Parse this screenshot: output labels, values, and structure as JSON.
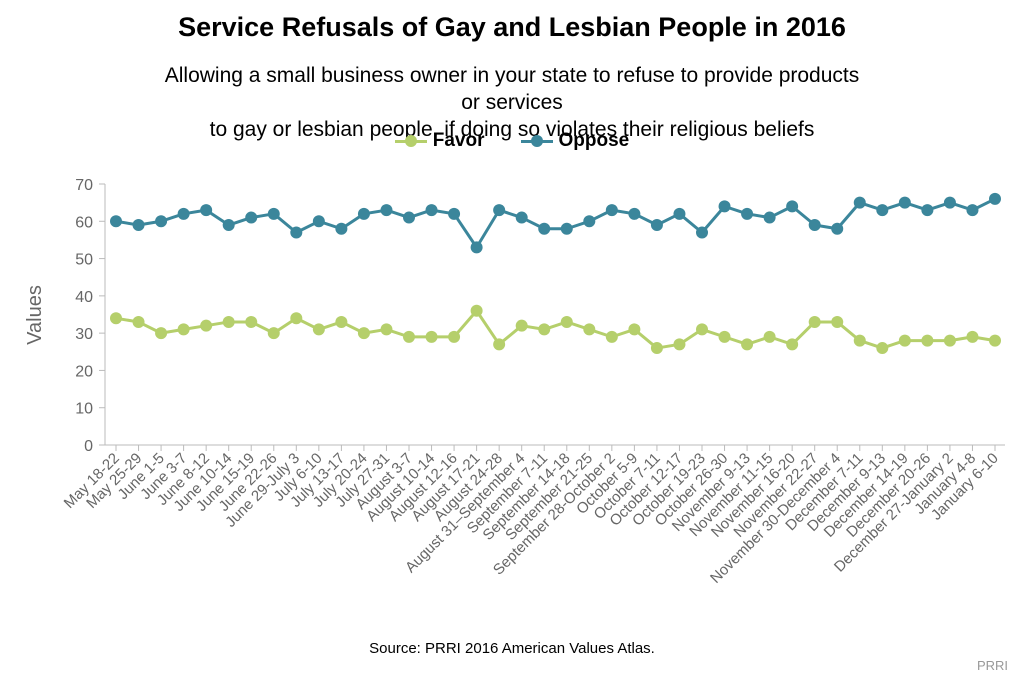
{
  "colors": {
    "favor": "#b5cf6b",
    "oppose": "#3b869b",
    "axis": "#bbbbbb",
    "tick_text": "#666666"
  },
  "chart_data": {
    "type": "line",
    "title": "Service Refusals of Gay and Lesbian People in 2016",
    "subtitle_lines": [
      "Allowing a small business owner in your state to refuse to provide products or services",
      "to gay or lesbian people, if doing so violates their religious beliefs"
    ],
    "ylabel": "Values",
    "xlabel": "",
    "ylim": [
      0,
      70
    ],
    "yticks": [
      0,
      10,
      20,
      30,
      40,
      50,
      60,
      70
    ],
    "grid": false,
    "legend_position": "top-center",
    "categories": [
      "May 18-22",
      "May 25-29",
      "June 1-5",
      "June 3-7",
      "June 8-12",
      "June 10-14",
      "June 15-19",
      "June 22-26",
      "June 29-July 3",
      "July 6-10",
      "July 13-17",
      "July 20-24",
      "July 27-31",
      "August 3-7",
      "August 10-14",
      "August 12-16",
      "August 17-21",
      "August 24-28",
      "August 31–September 4",
      "September 7-11",
      "September 14-18",
      "September 21-25",
      "September 28-October 2",
      "October 5-9",
      "October 7-11",
      "October 12-17",
      "October 19-23",
      "October 26-30",
      "November 9-13",
      "November 11-15",
      "November 16-20",
      "November 22-27",
      "November 30-December 4",
      "December 7-11",
      "December 9-13",
      "December 14-19",
      "December 20-26",
      "December 27-January 2",
      "January 4-8",
      "January 6-10"
    ],
    "series": [
      {
        "name": "Favor",
        "color": "#b5cf6b",
        "values": [
          34,
          33,
          30,
          31,
          32,
          33,
          33,
          30,
          34,
          31,
          33,
          30,
          31,
          29,
          29,
          29,
          36,
          27,
          32,
          31,
          33,
          31,
          29,
          31,
          26,
          27,
          31,
          29,
          27,
          29,
          27,
          33,
          33,
          28,
          26,
          28,
          28,
          28,
          29,
          28
        ]
      },
      {
        "name": "Oppose",
        "color": "#3b869b",
        "values": [
          60,
          59,
          60,
          62,
          63,
          59,
          61,
          62,
          57,
          60,
          58,
          62,
          63,
          61,
          63,
          62,
          53,
          63,
          61,
          58,
          58,
          60,
          63,
          62,
          59,
          62,
          57,
          64,
          62,
          61,
          64,
          59,
          58,
          65,
          63,
          65,
          63,
          65,
          63,
          66
        ]
      }
    ]
  },
  "footer": {
    "source": "Source: PRRI 2016 American Values Atlas.",
    "credit": "PRRI"
  }
}
